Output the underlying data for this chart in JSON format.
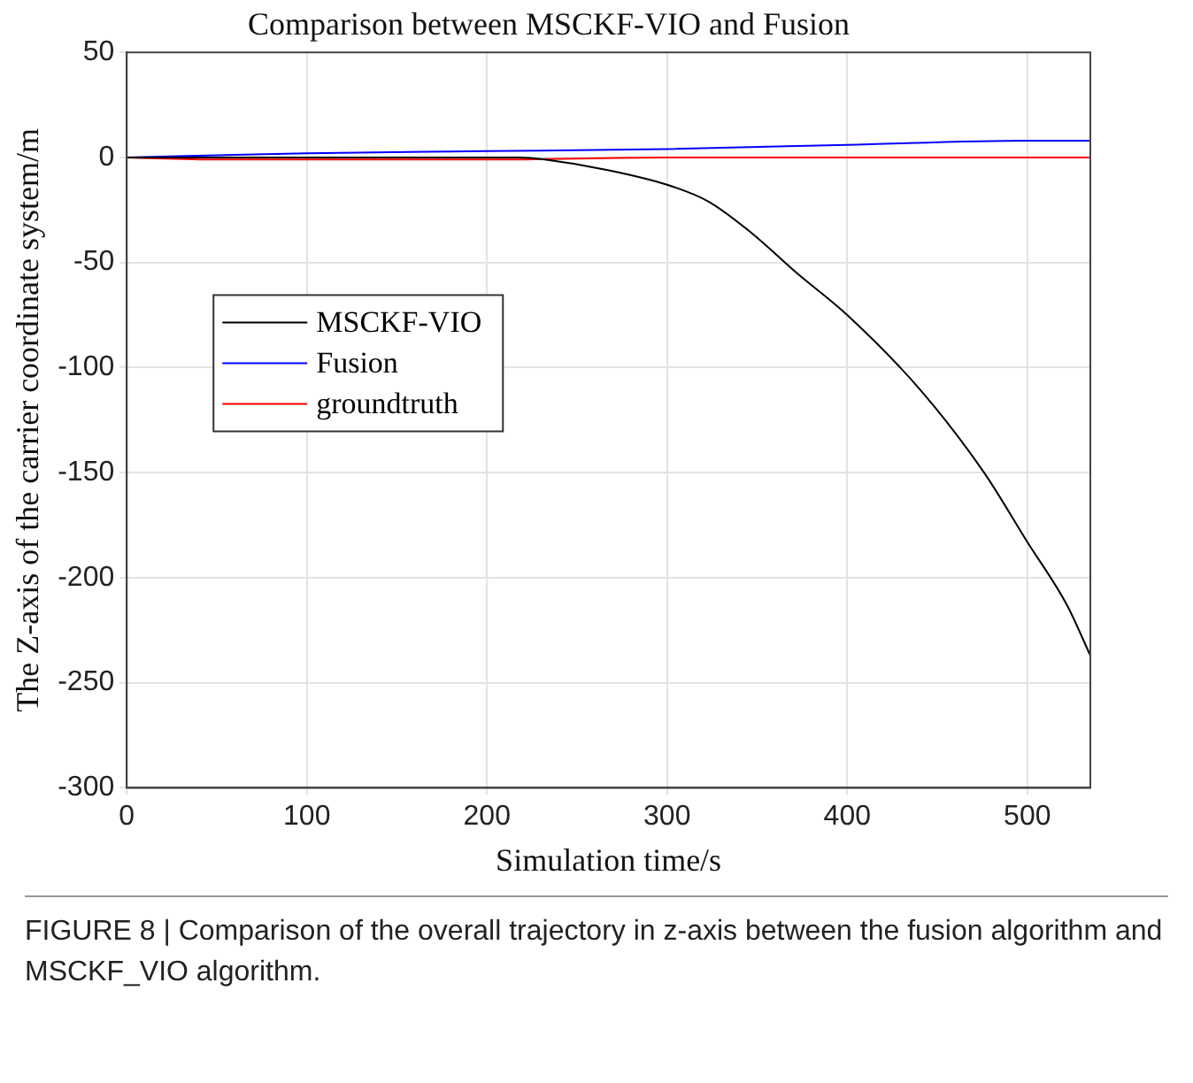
{
  "chart_data": {
    "type": "line",
    "title": "Comparison between MSCKF-VIO and Fusion",
    "xlabel": "Simulation time/s",
    "ylabel": "The Z-axis of the carrier coordinate system/m",
    "series": [
      {
        "name": "MSCKF-VIO",
        "color": "#000000",
        "x": [
          0,
          100,
          200,
          218,
          232,
          267,
          300,
          323,
          347,
          372,
          400,
          441,
          476,
          500,
          522,
          535
        ],
        "values": [
          0,
          0,
          0,
          0,
          -1,
          -6,
          -13,
          -21,
          -36,
          -55,
          -75,
          -111,
          -150,
          -183,
          -213,
          -237
        ]
      },
      {
        "name": "Fusion",
        "color": "#0000ff",
        "x": [
          0,
          100,
          200,
          300,
          400,
          500,
          535
        ],
        "values": [
          0,
          2,
          3,
          4,
          6,
          8,
          8
        ]
      },
      {
        "name": "groundtruth",
        "color": "#ff0000",
        "x": [
          0,
          50,
          100,
          200,
          300,
          400,
          500,
          535
        ],
        "values": [
          0,
          -1,
          -1,
          -1,
          0,
          0,
          0,
          0
        ]
      }
    ],
    "xlim": [
      0,
      535
    ],
    "xticks": [
      0,
      100,
      200,
      300,
      400,
      500
    ],
    "ylim": [
      -300,
      50
    ],
    "yticks": [
      -300,
      -250,
      -200,
      -150,
      -100,
      -50,
      0,
      50
    ],
    "grid": true,
    "legend": "left",
    "marker": "none",
    "line_style": "solid",
    "annotations": [
      "FIGURE 8 | Comparison of the overall trajectory in z-axis between the fusion algorithm and MSCKF_VIO algorithm."
    ]
  }
}
